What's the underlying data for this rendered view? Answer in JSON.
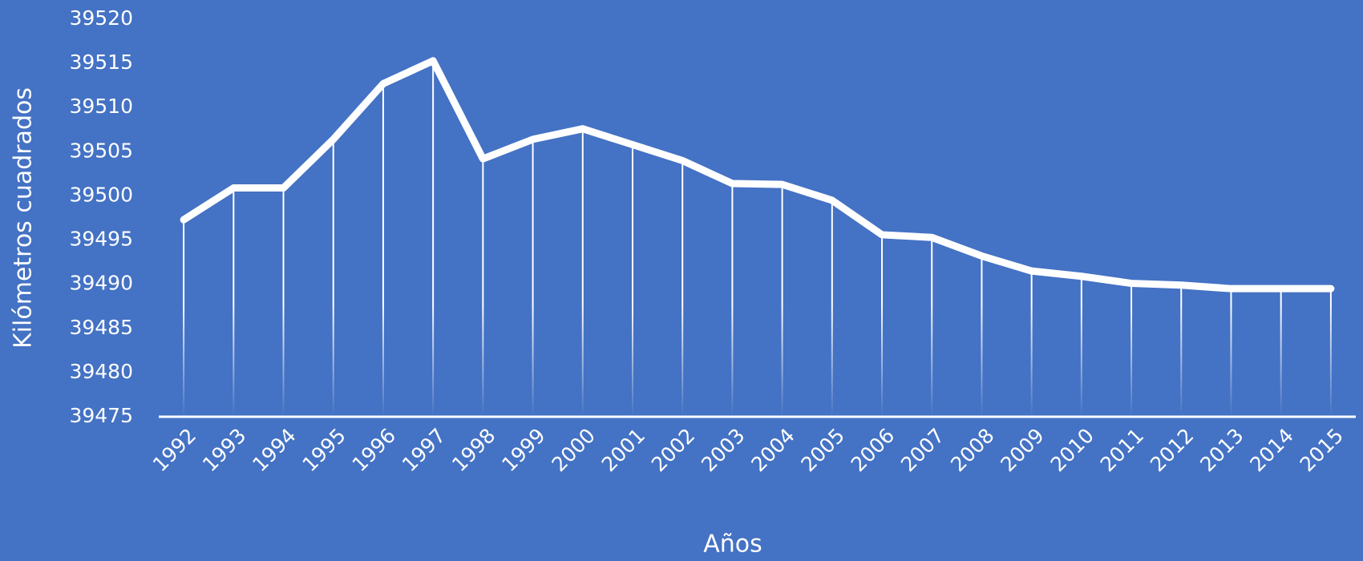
{
  "chart_data": {
    "type": "line",
    "x_label": "Años",
    "y_label": "Kilómetros cuadrados",
    "categories": [
      "1992",
      "1993",
      "1994",
      "1995",
      "1996",
      "1997",
      "1998",
      "1999",
      "2000",
      "2001",
      "2002",
      "2003",
      "2004",
      "2005",
      "2006",
      "2007",
      "2008",
      "2009",
      "2010",
      "2011",
      "2012",
      "2013",
      "2014",
      "2015"
    ],
    "series": [
      {
        "name": "Kilómetros cuadrados",
        "color": "#ffffff",
        "values": [
          39497.3,
          39500.9,
          39500.9,
          39506.4,
          39512.7,
          39515.3,
          39504.2,
          39506.4,
          39507.6,
          39505.8,
          39504,
          39501.4,
          39501.3,
          39499.5,
          39495.6,
          39495.3,
          39493.2,
          39491.5,
          39490.9,
          39490.1,
          39489.9,
          39489.5,
          39489.5,
          39489.5
        ]
      }
    ],
    "ylim": [
      39475,
      39520
    ],
    "yticks": [
      39475,
      39480,
      39485,
      39490,
      39495,
      39500,
      39505,
      39510,
      39515,
      39520
    ],
    "background": "#4472c4",
    "drop_lines": true,
    "grid": false
  }
}
